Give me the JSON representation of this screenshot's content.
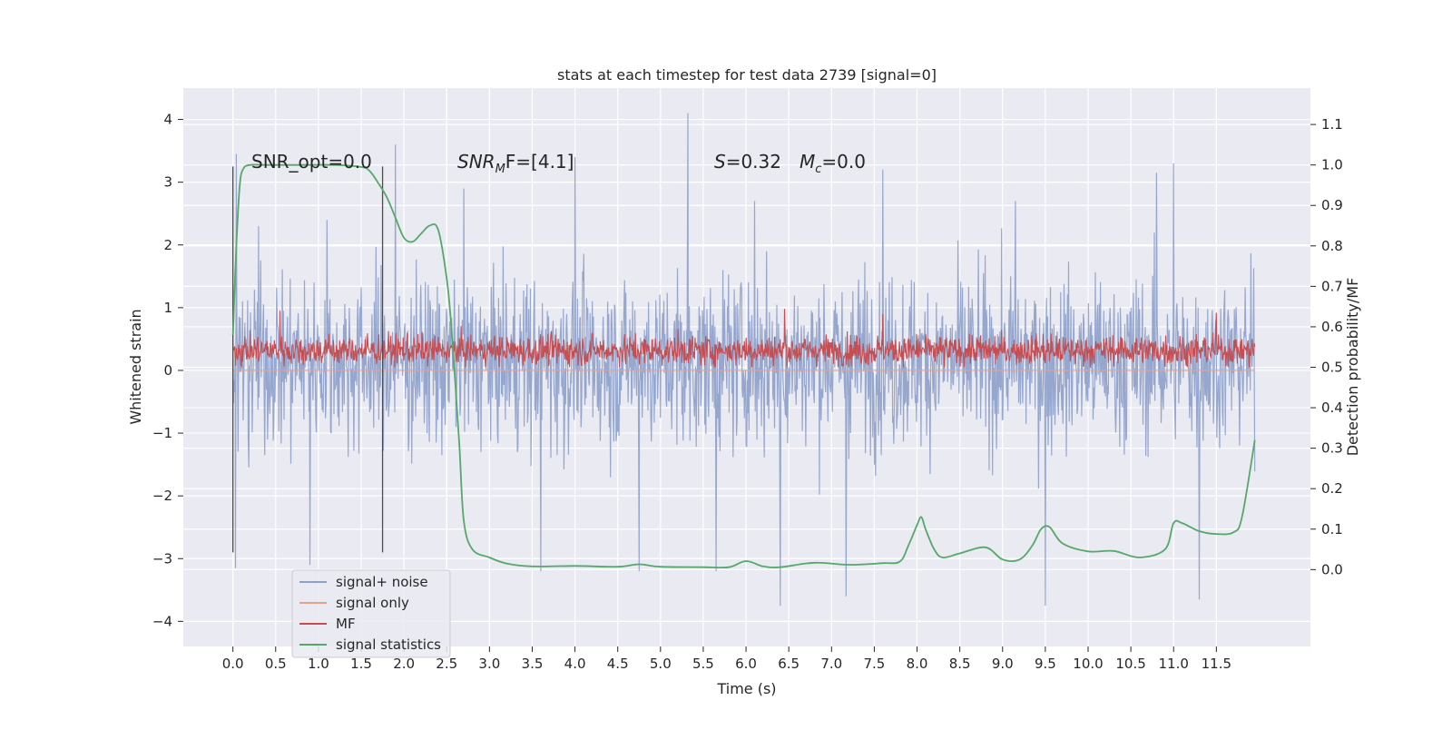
{
  "chart_data": {
    "type": "line",
    "title": "stats at each timestep for test data 2739 [signal=0]",
    "xlabel": "Time (s)",
    "ylabel_left": "Whitened strain",
    "ylabel_right": "Detection probability/MF",
    "xlim": [
      -0.58,
      12.6
    ],
    "ylim_left": [
      -4.4,
      4.5
    ],
    "ylim_right": [
      -0.19,
      1.19
    ],
    "x_ticks": [
      "0.0",
      "0.5",
      "1.0",
      "1.5",
      "2.0",
      "2.5",
      "3.0",
      "3.5",
      "4.0",
      "4.5",
      "5.0",
      "5.5",
      "6.0",
      "6.5",
      "7.0",
      "7.5",
      "8.0",
      "8.5",
      "9.0",
      "9.5",
      "10.0",
      "10.5",
      "11.0",
      "11.5"
    ],
    "y_ticks_left": [
      "4",
      "3",
      "2",
      "1",
      "0",
      "−1",
      "−2",
      "−3",
      "−4"
    ],
    "y_ticks_right": [
      "1.1",
      "1.0",
      "0.9",
      "0.8",
      "0.7",
      "0.6",
      "0.5",
      "0.4",
      "0.3",
      "0.2",
      "0.1",
      "0.0"
    ],
    "grid": true,
    "legend_placement": "lower-left",
    "annotations": {
      "snr_opt": "SNR_opt=0.0",
      "snr_mf_prefix": "SNR",
      "snr_mf_sub": "M",
      "snr_mf_suffix": "F=[4.1]",
      "s_var": "S",
      "s_value": "=0.32",
      "mc_var": "M",
      "mc_sub": "c",
      "mc_value": "=0.0"
    },
    "vertical_markers": [
      0.0,
      1.75
    ],
    "series": [
      {
        "name": "signal+ noise",
        "color": "#8da0cb",
        "axis": "left",
        "description_range": [
          -3.8,
          4.1
        ],
        "band": [
          -1.6,
          1.9
        ],
        "peak_samples": [
          [
            0.04,
            3.45
          ],
          [
            0.3,
            2.3
          ],
          [
            1.1,
            2.4
          ],
          [
            1.9,
            3.6
          ],
          [
            2.7,
            2.9
          ],
          [
            4.0,
            3.4
          ],
          [
            5.32,
            4.1
          ],
          [
            6.1,
            2.7
          ],
          [
            7.6,
            3.2
          ],
          [
            9.15,
            2.7
          ],
          [
            10.8,
            3.15
          ],
          [
            11.0,
            3.3
          ],
          [
            11.3,
            3.25
          ],
          [
            0.03,
            -3.15
          ],
          [
            0.9,
            -3.1
          ],
          [
            3.6,
            -3.2
          ],
          [
            4.75,
            -3.2
          ],
          [
            5.65,
            -3.2
          ],
          [
            6.4,
            -3.75
          ],
          [
            7.17,
            -3.6
          ],
          [
            9.5,
            -3.75
          ],
          [
            11.3,
            -3.65
          ]
        ]
      },
      {
        "name": "signal only",
        "color": "#e6a28a",
        "axis": "left",
        "values_constant": 0.0
      },
      {
        "name": "MF",
        "color": "#c44e52",
        "axis": "left",
        "band": [
          0.05,
          0.65
        ],
        "peak_samples": [
          [
            0.55,
            0.95
          ],
          [
            6.45,
            0.98
          ],
          [
            7.6,
            0.9
          ],
          [
            11.5,
            0.92
          ]
        ]
      },
      {
        "name": "signal statistics",
        "color": "#55a868",
        "axis": "right",
        "x": [
          0.0,
          0.04,
          0.08,
          0.12,
          0.2,
          0.4,
          0.8,
          1.2,
          1.5,
          1.6,
          1.7,
          1.8,
          1.9,
          2.0,
          2.1,
          2.2,
          2.3,
          2.4,
          2.5,
          2.55,
          2.6,
          2.65,
          2.7,
          2.8,
          3.0,
          3.2,
          3.5,
          4.0,
          4.5,
          4.75,
          5.0,
          5.5,
          5.8,
          6.0,
          6.2,
          6.4,
          6.8,
          7.2,
          7.6,
          7.8,
          7.9,
          8.0,
          8.05,
          8.1,
          8.2,
          8.3,
          8.5,
          8.8,
          9.0,
          9.2,
          9.35,
          9.45,
          9.55,
          9.7,
          10.0,
          10.3,
          10.6,
          10.9,
          11.0,
          11.1,
          11.3,
          11.5,
          11.7,
          11.8,
          11.95
        ],
        "values": [
          0.58,
          0.8,
          0.95,
          0.99,
          1.0,
          1.0,
          1.0,
          1.0,
          0.995,
          0.985,
          0.955,
          0.92,
          0.87,
          0.82,
          0.81,
          0.83,
          0.85,
          0.84,
          0.72,
          0.61,
          0.46,
          0.3,
          0.12,
          0.05,
          0.03,
          0.015,
          0.008,
          0.009,
          0.007,
          0.013,
          0.007,
          0.006,
          0.006,
          0.021,
          0.008,
          0.006,
          0.017,
          0.012,
          0.016,
          0.02,
          0.06,
          0.11,
          0.13,
          0.1,
          0.05,
          0.03,
          0.04,
          0.055,
          0.025,
          0.025,
          0.06,
          0.1,
          0.105,
          0.065,
          0.045,
          0.046,
          0.03,
          0.05,
          0.115,
          0.115,
          0.095,
          0.088,
          0.092,
          0.13,
          0.32
        ]
      }
    ]
  }
}
